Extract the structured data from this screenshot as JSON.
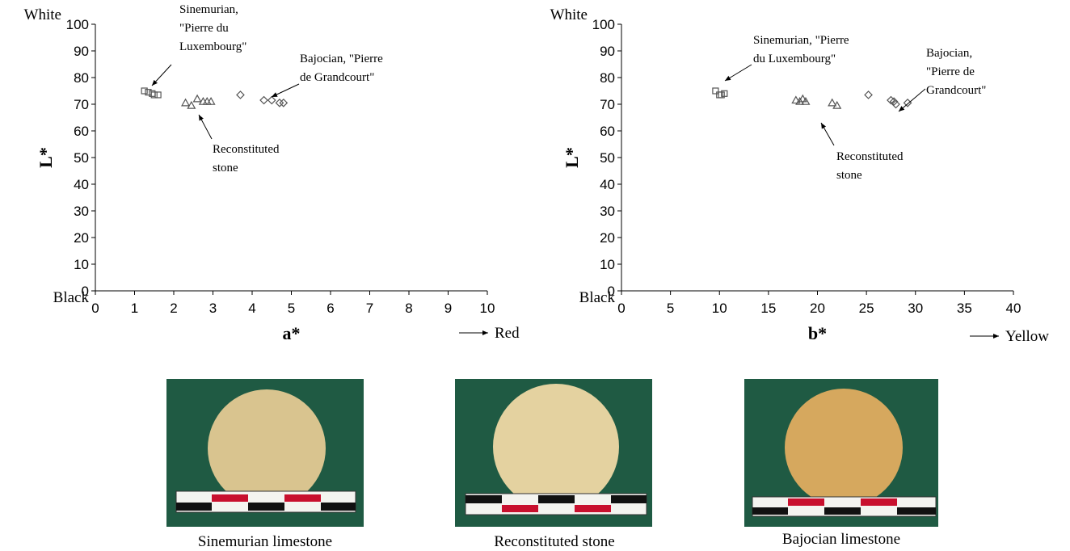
{
  "chart_data": [
    {
      "type": "scatter",
      "x_label": "a*",
      "y_label": "L*",
      "y_top_label": "White",
      "y_bottom_label": "Black",
      "x_direction": "Red",
      "xlim": [
        0,
        10
      ],
      "xticks": [
        0,
        1,
        2,
        3,
        4,
        5,
        6,
        7,
        8,
        9,
        10
      ],
      "ylim": [
        0,
        100
      ],
      "yticks": [
        0,
        10,
        20,
        30,
        40,
        50,
        60,
        70,
        80,
        90,
        100
      ],
      "series": [
        {
          "marker": "square",
          "color": "#555555",
          "x": [
            1.25,
            1.35,
            1.45,
            1.5,
            1.6
          ],
          "values": [
            75,
            74.5,
            74,
            73.5,
            73.5
          ]
        },
        {
          "marker": "triangle",
          "color": "#555555",
          "x": [
            2.3,
            2.45,
            2.6,
            2.75,
            2.85,
            2.95
          ],
          "values": [
            70.5,
            69.5,
            72,
            71,
            71,
            71
          ]
        },
        {
          "marker": "diamond",
          "color": "#555555",
          "x": [
            3.7,
            4.3,
            4.5,
            4.7,
            4.8
          ],
          "values": [
            73.5,
            71.5,
            71.5,
            70.5,
            70.5
          ]
        }
      ],
      "annotations": [
        [
          "Sinemurian,",
          "\"Pierre du",
          "Luxembourg\""
        ],
        [
          "Bajocian, \"Pierre",
          "de Grandcourt\""
        ],
        [
          "Reconstituted",
          "stone"
        ]
      ]
    },
    {
      "type": "scatter",
      "x_label": "b*",
      "y_label": "L*",
      "y_top_label": "White",
      "y_bottom_label": "Black",
      "x_direction": "Yellow",
      "xlim": [
        0,
        40
      ],
      "xticks": [
        0,
        5,
        10,
        15,
        20,
        25,
        30,
        35,
        40
      ],
      "ylim": [
        0,
        100
      ],
      "yticks": [
        0,
        10,
        20,
        30,
        40,
        50,
        60,
        70,
        80,
        90,
        100
      ],
      "series": [
        {
          "marker": "square",
          "color": "#555555",
          "x": [
            9.6,
            10,
            10.2,
            10.5
          ],
          "values": [
            75,
            73.5,
            73.5,
            74
          ]
        },
        {
          "marker": "triangle",
          "color": "#555555",
          "x": [
            17.8,
            18.2,
            18.5,
            18.8,
            21.5,
            22
          ],
          "values": [
            71.5,
            71,
            72,
            71,
            70.5,
            69.5
          ]
        },
        {
          "marker": "diamond",
          "color": "#555555",
          "x": [
            25.2,
            27.5,
            27.8,
            28,
            29.2
          ],
          "values": [
            73.5,
            71.5,
            71,
            70,
            70.5
          ]
        }
      ],
      "annotations": [
        [
          "Sinemurian, \"Pierre",
          "du Luxembourg\""
        ],
        [
          "Bajocian,",
          "\"Pierre de",
          "Grandcourt\""
        ],
        [
          "Reconstituted",
          "stone"
        ]
      ]
    }
  ],
  "photos": [
    "Sinemurian limestone",
    "Reconstituted stone",
    "Bajocian limestone"
  ]
}
